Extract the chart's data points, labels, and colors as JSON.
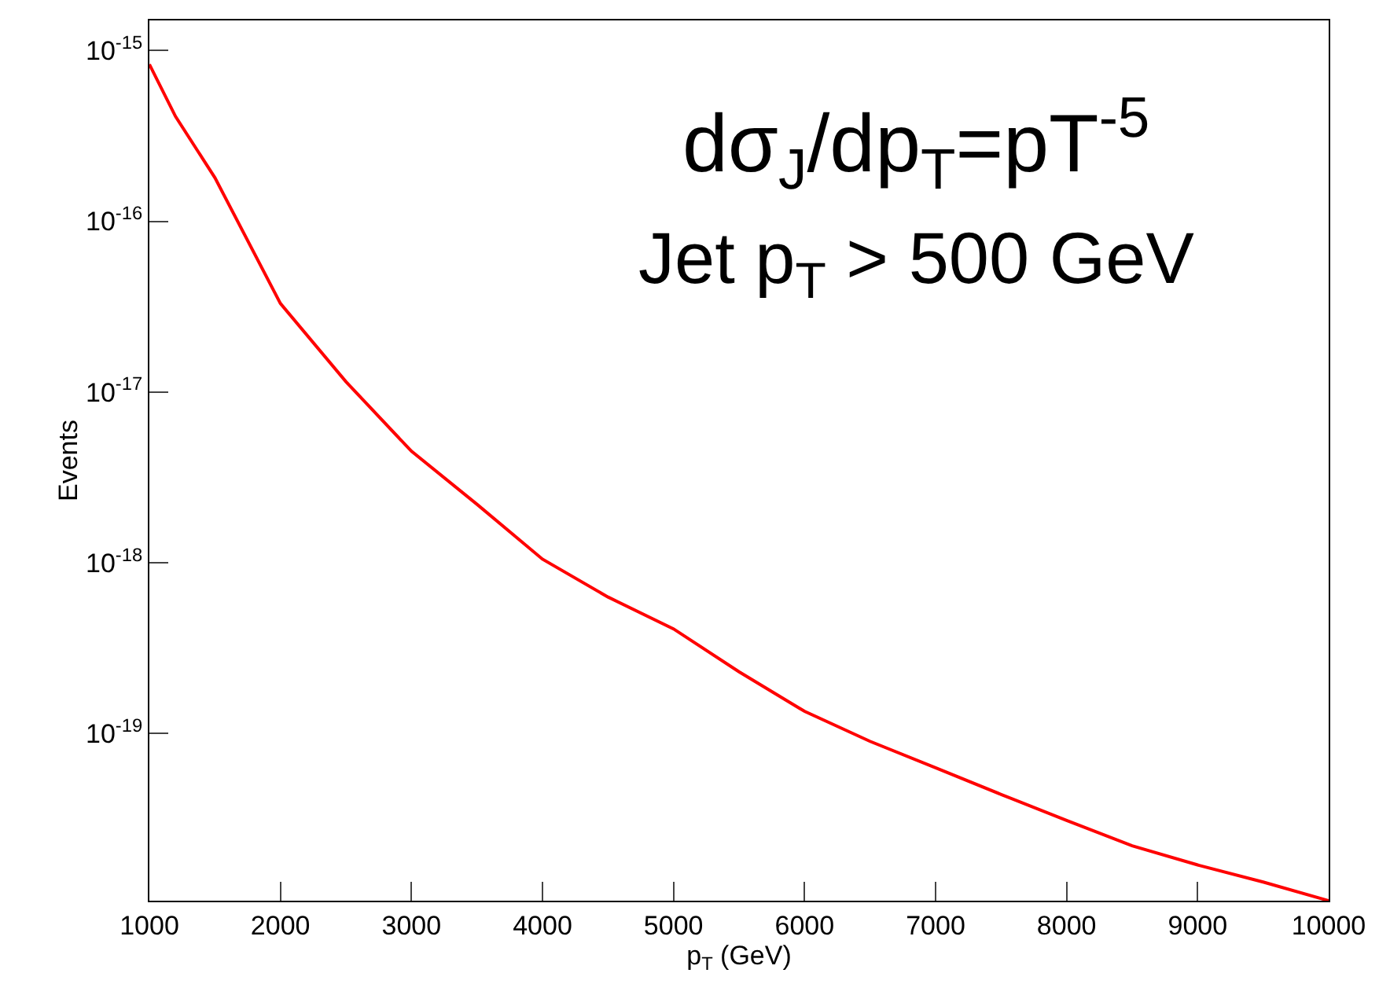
{
  "chart_data": {
    "type": "line",
    "xlabel": "p$_{T}$ (GeV)",
    "ylabel": "Events",
    "annotations": [
      "dσ$_{J}$/dp$_{T}$=pT$^{-5}$",
      "Jet p$_{T}$ > 500 GeV"
    ],
    "x": [
      1000,
      1200,
      1500,
      2000,
      2500,
      3000,
      3500,
      4000,
      4500,
      5000,
      5500,
      6000,
      6500,
      7000,
      7500,
      8000,
      8500,
      9000,
      9500,
      10000
    ],
    "series": [
      {
        "color": "#ff0000",
        "values": [
          8.3e-16,
          4.1e-16,
          1.8e-16,
          3.3e-17,
          1.15e-17,
          4.5e-18,
          2.2e-18,
          1.05e-18,
          6.3e-19,
          4.1e-19,
          2.3e-19,
          1.35e-19,
          9e-20,
          6.3e-20,
          4.4e-20,
          3.1e-20,
          2.2e-20,
          1.7e-20,
          1.35e-20,
          1.05e-20
        ]
      }
    ],
    "xlim": [
      1000,
      10000
    ],
    "xticks": [
      1000,
      2000,
      3000,
      4000,
      5000,
      6000,
      7000,
      8000,
      9000,
      10000
    ],
    "ylim": [
      1.05e-20,
      1.5e-15
    ],
    "yticks": [
      {
        "value": 1e-19,
        "label": "10$^{-19}$"
      },
      {
        "value": 1e-18,
        "label": "10$^{-18}$"
      },
      {
        "value": 1e-17,
        "label": "10$^{-17}$"
      },
      {
        "value": 1e-16,
        "label": "10$^{-16}$"
      },
      {
        "value": 1e-15,
        "label": "10$^{-15}$"
      }
    ],
    "log": true,
    "marker": "none",
    "line_style": "solid"
  }
}
